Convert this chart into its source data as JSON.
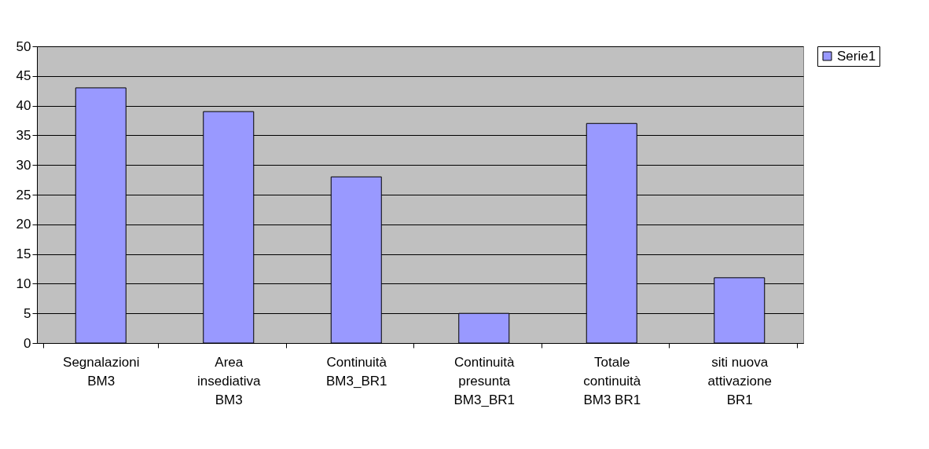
{
  "chart_data": {
    "type": "bar",
    "categories": [
      "Segnalazioni\nBM3",
      "Area\ninsediativa\nBM3",
      "Continuità\nBM3_BR1",
      "Continuità\npresunta\nBM3_BR1",
      "Totale\ncontinuità\nBM3 BR1",
      "siti nuova\nattivazione\nBR1"
    ],
    "series": [
      {
        "name": "Serie1",
        "color": "#9999ff",
        "values": [
          43,
          39,
          28,
          5,
          37,
          11
        ]
      }
    ],
    "ylim": [
      0,
      50
    ],
    "yticks": [
      0,
      5,
      10,
      15,
      20,
      25,
      30,
      35,
      40,
      45,
      50
    ],
    "grid": "y",
    "legend": "right"
  }
}
